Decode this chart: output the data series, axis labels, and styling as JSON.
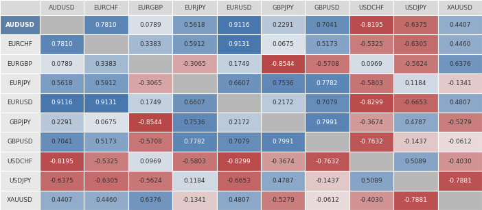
{
  "pairs": [
    "AUDUSD",
    "EURCHF",
    "EURGBP",
    "EURJPY",
    "EURUSD",
    "GBPJPY",
    "GBPUSD",
    "USDCHF",
    "USDJPY",
    "XAUUSD"
  ],
  "matrix": [
    [
      null,
      0.781,
      0.0789,
      0.5618,
      0.9116,
      0.2291,
      0.7041,
      -0.8195,
      -0.6375,
      0.4407
    ],
    [
      0.781,
      null,
      0.3383,
      0.5912,
      0.9131,
      0.0675,
      0.5173,
      -0.5325,
      -0.6305,
      0.446
    ],
    [
      0.0789,
      0.3383,
      null,
      -0.3065,
      0.1749,
      -0.8544,
      -0.5708,
      0.0969,
      -0.5624,
      0.6376
    ],
    [
      0.5618,
      0.5912,
      -0.3065,
      null,
      0.6607,
      0.7536,
      0.7782,
      -0.5803,
      0.1184,
      -0.1341
    ],
    [
      0.9116,
      0.9131,
      0.1749,
      0.6607,
      null,
      0.2172,
      0.7079,
      -0.8299,
      -0.6653,
      0.4807
    ],
    [
      0.2291,
      0.0675,
      -0.8544,
      0.7536,
      0.2172,
      null,
      0.7991,
      -0.3674,
      0.4787,
      -0.5279
    ],
    [
      0.7041,
      0.5173,
      -0.5708,
      0.7782,
      0.7079,
      0.7991,
      null,
      -0.7632,
      -0.1437,
      -0.0612
    ],
    [
      -0.8195,
      -0.5325,
      0.0969,
      -0.5803,
      -0.8299,
      -0.3674,
      -0.7632,
      null,
      0.5089,
      -0.403
    ],
    [
      -0.6375,
      -0.6305,
      -0.5624,
      0.1184,
      -0.6653,
      0.4787,
      -0.1437,
      0.5089,
      null,
      -0.7881
    ],
    [
      0.4407,
      0.446,
      0.6376,
      -0.1341,
      0.4807,
      -0.5279,
      -0.0612,
      -0.403,
      -0.7881,
      null
    ]
  ],
  "header_bg": "#d9d9d9",
  "header_fg": "#444444",
  "row0_label_bg": "#5b7fa6",
  "row0_label_fg": "#ffffff",
  "row_label_bg": "#e8e8e8",
  "row_label_fg": "#333333",
  "diag_color": "#b8b8b8",
  "positive_high_color": "#3a6ea8",
  "negative_high_color": "#b03030",
  "neutral_color": "#f0f0f0",
  "grid_color": "#ffffff",
  "text_color_dark": "#333333",
  "text_color_light": "#ffffff",
  "cell_font_size": 6.5,
  "header_font_size": 6.5,
  "row_label_font_size": 6.5
}
